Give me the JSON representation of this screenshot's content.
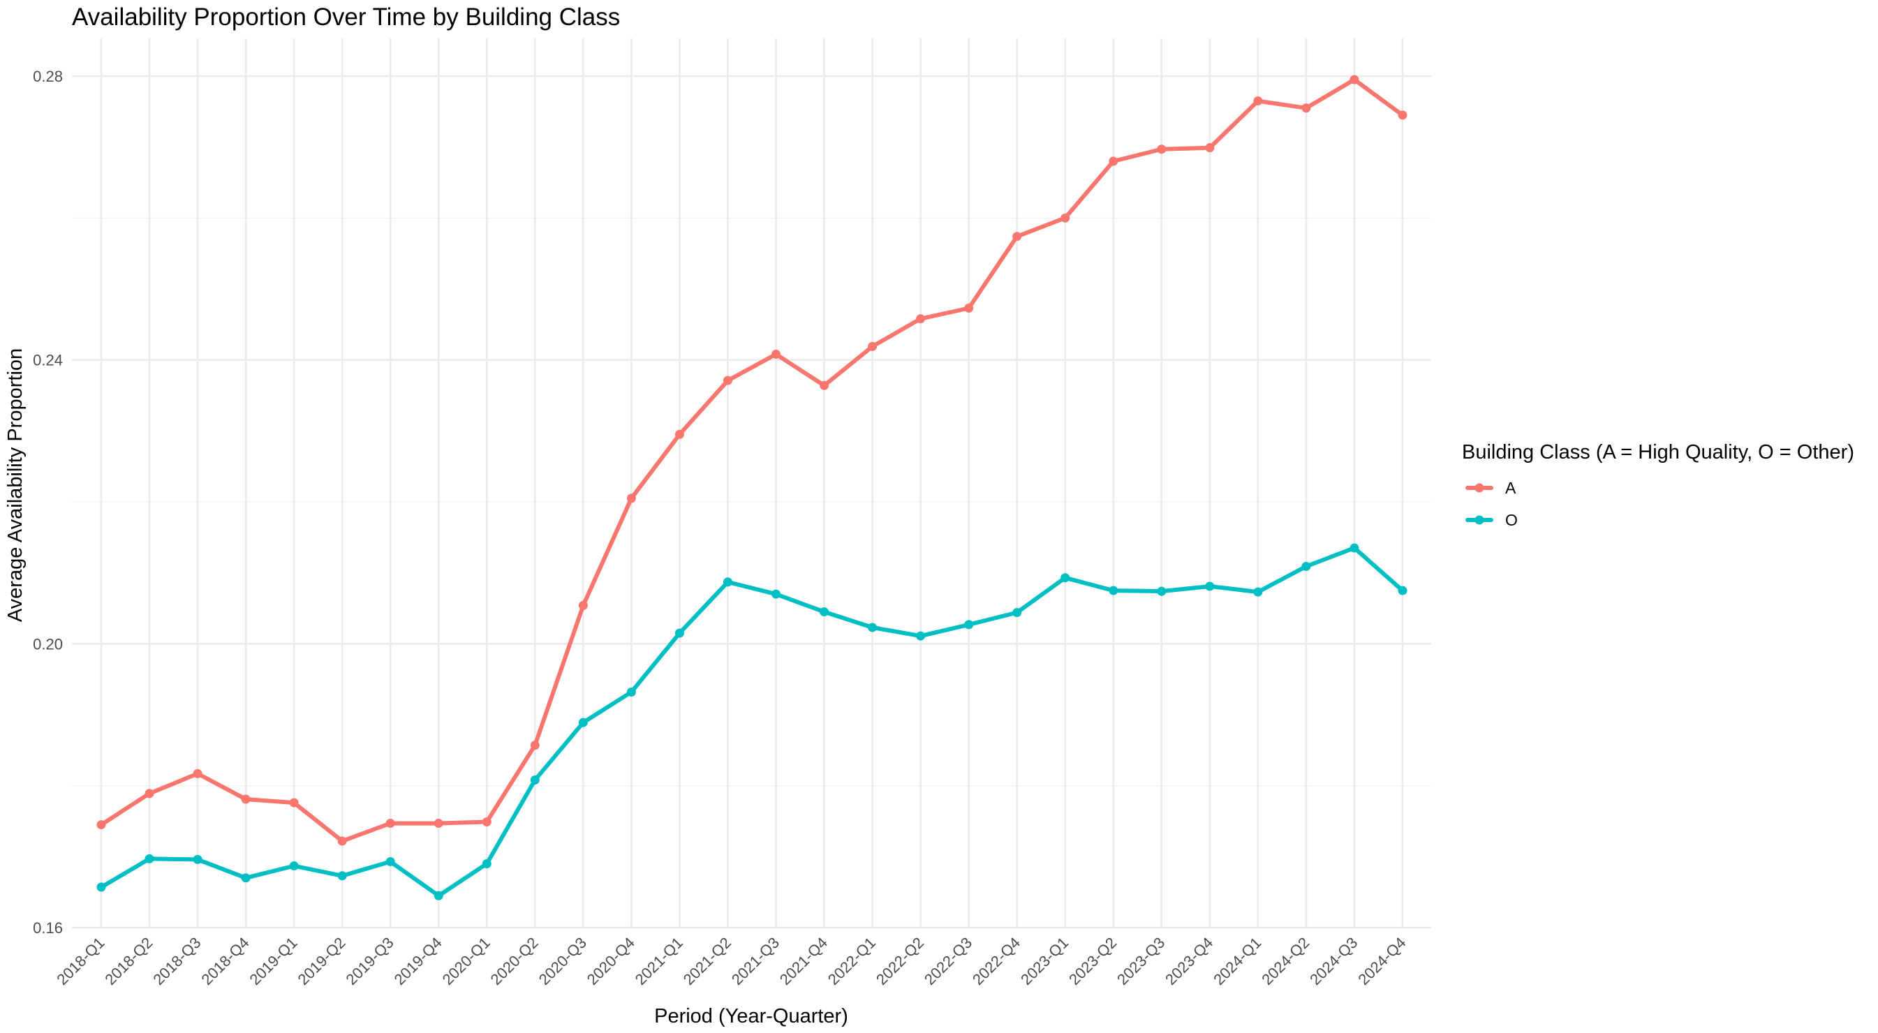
{
  "chart_data": {
    "type": "line",
    "title": "Availability Proportion Over Time by Building Class",
    "xlabel": "Period (Year-Quarter)",
    "ylabel": "Average Availability Proportion",
    "ylim": [
      0.16,
      0.285
    ],
    "yticks": [
      0.16,
      0.2,
      0.24,
      0.28
    ],
    "ytick_labels": [
      "0.16",
      "0.20",
      "0.24",
      "0.28"
    ],
    "grid": true,
    "legend": {
      "title": "Building Class (A = High Quality, O = Other)",
      "position": "right"
    },
    "categories": [
      "2018-Q1",
      "2018-Q2",
      "2018-Q3",
      "2018-Q4",
      "2019-Q1",
      "2019-Q2",
      "2019-Q3",
      "2019-Q4",
      "2020-Q1",
      "2020-Q2",
      "2020-Q3",
      "2020-Q4",
      "2021-Q1",
      "2021-Q2",
      "2021-Q3",
      "2021-Q4",
      "2022-Q1",
      "2022-Q2",
      "2022-Q3",
      "2022-Q4",
      "2023-Q1",
      "2023-Q2",
      "2023-Q3",
      "2023-Q4",
      "2024-Q1",
      "2024-Q2",
      "2024-Q3",
      "2024-Q4"
    ],
    "series": [
      {
        "name": "A",
        "color": "#F8766D",
        "values": [
          0.1745,
          0.1789,
          0.1817,
          0.1781,
          0.1776,
          0.1722,
          0.1747,
          0.1747,
          0.1749,
          0.1857,
          0.2054,
          0.2205,
          0.2295,
          0.2371,
          0.2408,
          0.2364,
          0.2419,
          0.2458,
          0.2473,
          0.2574,
          0.26,
          0.268,
          0.2697,
          0.2699,
          0.2765,
          0.2755,
          0.2795,
          0.2745
        ]
      },
      {
        "name": "O",
        "color": "#00BFC4",
        "values": [
          0.1657,
          0.1697,
          0.1696,
          0.167,
          0.1687,
          0.1673,
          0.1693,
          0.1645,
          0.169,
          0.1808,
          0.1889,
          0.1932,
          0.2015,
          0.2087,
          0.207,
          0.2045,
          0.2023,
          0.2011,
          0.2027,
          0.2044,
          0.2093,
          0.2075,
          0.2074,
          0.2081,
          0.2073,
          0.2109,
          0.2135,
          0.2075
        ]
      }
    ]
  }
}
